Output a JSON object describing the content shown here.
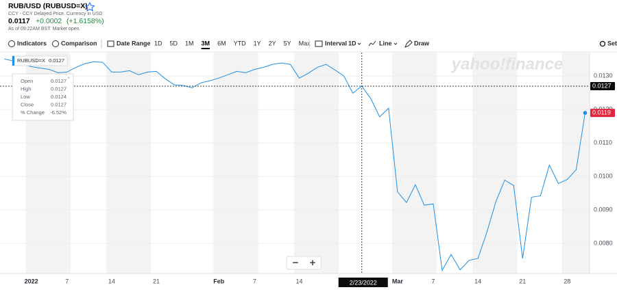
{
  "header": {
    "title": "RUB/USD (RUBUSD=X)",
    "subtitle": "CCY - CCY Delayed Price. Currency in USD",
    "price": "0.0117",
    "change": "+0.0002",
    "change_percent": "(+1.6158%)",
    "as_of": "As of 09:22AM BST. Market open."
  },
  "toolbar": {
    "indicators": "Indicators",
    "comparison": "Comparison",
    "date_range": "Date Range",
    "ranges": [
      "1D",
      "5D",
      "1M",
      "3M",
      "6M",
      "YTD",
      "1Y",
      "2Y",
      "5Y",
      "Max"
    ],
    "selected_range": "3M",
    "interval": "Interval",
    "interval_value": "1D",
    "chart_style": "Line",
    "draw": "Draw",
    "settings": "Settings"
  },
  "chart_data": {
    "type": "line",
    "categories": [
      null,
      null,
      null,
      "2022",
      null,
      null,
      null,
      "7",
      null,
      null,
      null,
      null,
      "14",
      null,
      null,
      null,
      null,
      "21",
      null,
      null,
      null,
      null,
      null,
      null,
      "Feb",
      null,
      null,
      null,
      "7",
      null,
      null,
      null,
      null,
      "14",
      null,
      null,
      null,
      null,
      null,
      null,
      null,
      null,
      null,
      null,
      "Mar",
      null,
      null,
      null,
      "7",
      null,
      null,
      null,
      null,
      "14",
      null,
      null,
      null,
      null,
      "21",
      null,
      null,
      null,
      null,
      "28",
      null,
      null
    ],
    "series": [
      {
        "name": "RUBUSD=X",
        "color": "#1e8fe6",
        "values": [
          0.01351,
          0.01345,
          0.01337,
          0.01328,
          0.01324,
          0.0132,
          0.0131,
          0.01312,
          0.01326,
          0.01337,
          0.01343,
          0.01341,
          0.01312,
          0.01312,
          0.01316,
          0.01304,
          0.01312,
          0.01314,
          0.01292,
          0.01274,
          0.01272,
          0.01265,
          0.0128,
          0.01286,
          0.01294,
          0.01304,
          0.01314,
          0.0131,
          0.0132,
          0.01326,
          0.01335,
          0.01339,
          0.01335,
          0.01294,
          0.01308,
          0.01326,
          0.01335,
          0.01318,
          0.013,
          0.01249,
          0.0127,
          0.01233,
          0.01178,
          0.01204,
          0.00954,
          0.00922,
          0.00975,
          0.00914,
          0.00918,
          0.00719,
          0.00767,
          0.00721,
          0.00749,
          0.00755,
          0.00833,
          0.00924,
          0.00989,
          0.00973,
          0.00755,
          0.00938,
          0.00942,
          0.01034,
          0.00979,
          0.00991,
          0.0102,
          0.0119
        ]
      }
    ],
    "ylim": [
      0.0071,
      0.0137
    ],
    "yticks": [
      {
        "value": 0.008,
        "label": "0.0080"
      },
      {
        "value": 0.009,
        "label": "0.0090"
      },
      {
        "value": 0.01,
        "label": "0.0100"
      },
      {
        "value": 0.011,
        "label": "0.0110"
      },
      {
        "value": 0.012,
        "label": "0.0120"
      },
      {
        "value": 0.013,
        "label": "0.0130"
      }
    ],
    "grid": true,
    "watermark": "yahoo!finance",
    "last_price": {
      "value": 0.0119,
      "label": "0.0119",
      "color": "#e0263c"
    },
    "crosshair": {
      "x_label": "2/23/2022",
      "y": {
        "value": 0.0127,
        "label": "0.0127"
      }
    },
    "tooltip": {
      "symbol_value": "0.0127",
      "rows": [
        {
          "label": "Open",
          "value": "0.0127"
        },
        {
          "label": "High",
          "value": "0.0127"
        },
        {
          "label": "Low",
          "value": "0.0124"
        },
        {
          "label": "Close",
          "value": "0.0127"
        },
        {
          "label": "% Change",
          "value": "-6.52%"
        }
      ]
    },
    "zoom": [
      "−",
      "+"
    ]
  }
}
